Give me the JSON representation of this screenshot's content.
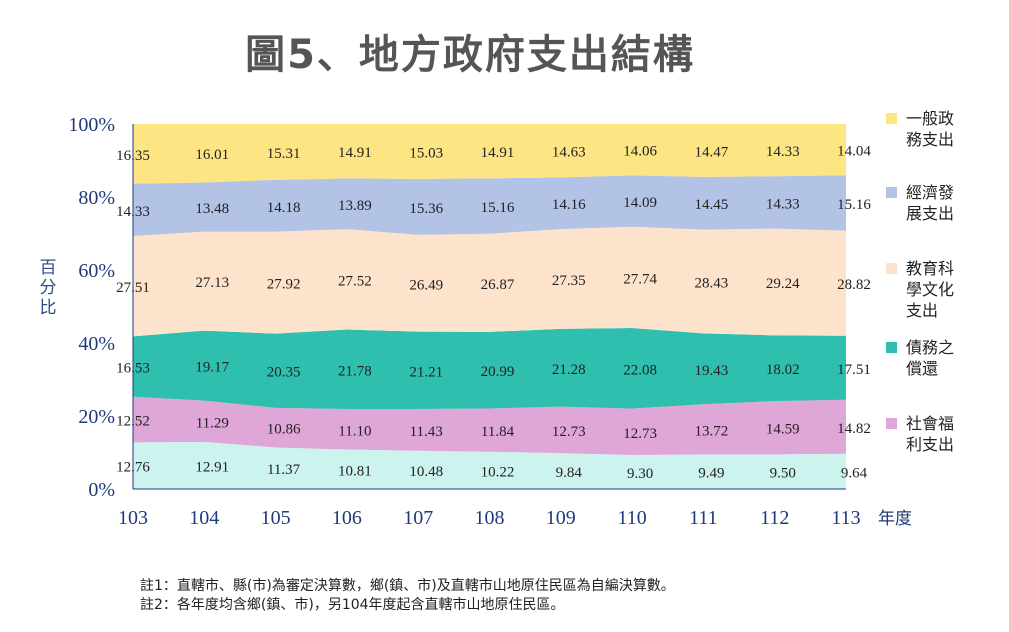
{
  "title": "圖5、地方政府支出結構",
  "chart_data": {
    "type": "area",
    "stacked": true,
    "percent": true,
    "categories": [
      "103",
      "104",
      "105",
      "106",
      "107",
      "108",
      "109",
      "110",
      "111",
      "112",
      "113"
    ],
    "xlabel": "年度",
    "ylabel": "百分比",
    "ylim": [
      0,
      100
    ],
    "yticks": [
      "0%",
      "20%",
      "40%",
      "60%",
      "80%",
      "100%"
    ],
    "grid": false,
    "legend_position": "right",
    "series": [
      {
        "name": "社會福利支出",
        "color": "#cdf3ef",
        "values": [
          12.76,
          12.91,
          11.37,
          10.81,
          10.48,
          10.22,
          9.84,
          9.3,
          9.49,
          9.5,
          9.64
        ],
        "labels": [
          "12.76",
          "12.91",
          "11.37",
          "10.81",
          "10.48",
          "10.22",
          "9.84",
          "9.30",
          "9.49",
          "9.50",
          "9.64"
        ]
      },
      {
        "name": "社會福利支出",
        "color": "#dfa6d8",
        "values": [
          12.52,
          11.29,
          10.86,
          11.1,
          11.43,
          11.84,
          12.73,
          12.73,
          13.72,
          14.59,
          14.82
        ],
        "labels": [
          "12.52",
          "11.29",
          "10.86",
          "11.10",
          "11.43",
          "11.84",
          "12.73",
          "12.73",
          "13.72",
          "14.59",
          "14.82"
        ]
      },
      {
        "name": "債務之償還",
        "color": "#2ebfae",
        "values": [
          16.53,
          19.17,
          20.35,
          21.78,
          21.21,
          20.99,
          21.28,
          22.08,
          19.43,
          18.02,
          17.51
        ],
        "labels": [
          "16.53",
          "19.17",
          "20.35",
          "21.78",
          "21.21",
          "20.99",
          "21.28",
          "22.08",
          "19.43",
          "18.02",
          "17.51"
        ]
      },
      {
        "name": "教育科學文化支出",
        "color": "#fde3cc",
        "values": [
          27.51,
          27.13,
          27.92,
          27.52,
          26.49,
          26.87,
          27.35,
          27.74,
          28.43,
          29.24,
          28.82
        ],
        "labels": [
          "27.51",
          "27.13",
          "27.92",
          "27.52",
          "26.49",
          "26.87",
          "27.35",
          "27.74",
          "28.43",
          "29.24",
          "28.82"
        ]
      },
      {
        "name": "經濟發展支出",
        "color": "#b3c3e6",
        "values": [
          14.33,
          13.48,
          14.18,
          13.89,
          15.36,
          15.16,
          14.16,
          14.09,
          14.45,
          14.33,
          15.16
        ],
        "labels": [
          "14.33",
          "13.48",
          "14.18",
          "13.89",
          "15.36",
          "15.16",
          "14.16",
          "14.09",
          "14.45",
          "14.33",
          "15.16"
        ]
      },
      {
        "name": "一般政務支出",
        "color": "#fde584",
        "values": [
          16.35,
          16.01,
          15.31,
          14.91,
          15.03,
          14.91,
          14.63,
          14.06,
          14.47,
          14.33,
          14.04
        ],
        "labels": [
          "16.35",
          "16.01",
          "15.31",
          "14.91",
          "15.03",
          "14.91",
          "14.63",
          "14.06",
          "14.47",
          "14.33",
          "14.04"
        ]
      }
    ],
    "legend": [
      {
        "lines": [
          "一般政",
          "務支出"
        ],
        "color": "#fde584"
      },
      {
        "lines": [
          "經濟發",
          "展支出"
        ],
        "color": "#b3c3e6"
      },
      {
        "lines": [
          "教育科",
          "學文化",
          "支出"
        ],
        "color": "#fde3cc"
      },
      {
        "lines": [
          "債務之",
          "償還"
        ],
        "color": "#2ebfae"
      },
      {
        "lines": [
          "社會福",
          "利支出"
        ],
        "color": "#dfa6d8"
      }
    ]
  },
  "notes": [
    "註1：直轄市、縣(市)為審定決算數，鄉(鎮、市)及直轄市山地原住民區為自編決算數。",
    "註2：各年度均含鄉(鎮、市)，另104年度起含直轄市山地原住民區。"
  ]
}
